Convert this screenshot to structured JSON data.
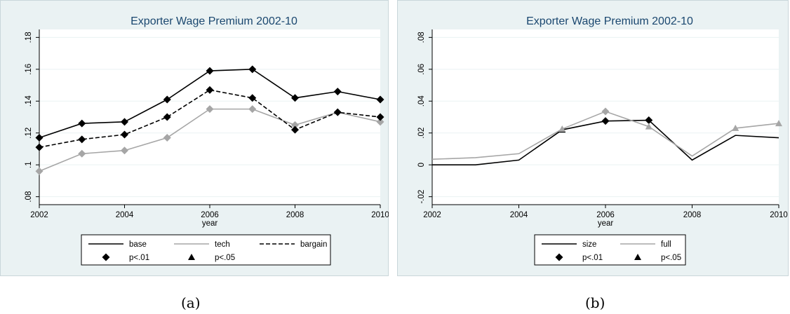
{
  "chart_data": [
    {
      "type": "line",
      "title": "Exporter Wage Premium 2002-10",
      "xlabel": "year",
      "ylabel": "",
      "x": [
        2002,
        2003,
        2004,
        2005,
        2006,
        2007,
        2008,
        2009,
        2010
      ],
      "xticks": [
        2002,
        2004,
        2006,
        2008,
        2010
      ],
      "xlim": [
        2002,
        2010
      ],
      "ylim": [
        0.075,
        0.185
      ],
      "yticks": [
        0.08,
        0.1,
        0.12,
        0.14,
        0.16,
        0.18
      ],
      "ytick_labels": [
        ".08",
        ".1",
        ".12",
        ".14",
        ".16",
        ".18"
      ],
      "grid": true,
      "legend_position": "bottom",
      "series": [
        {
          "name": "base",
          "style": "solid",
          "color": "#000000",
          "values": [
            0.117,
            0.126,
            0.127,
            0.141,
            0.159,
            0.16,
            0.142,
            0.146,
            0.141
          ],
          "markers": [
            "p<.01",
            "p<.01",
            "p<.01",
            "p<.01",
            "p<.01",
            "p<.01",
            "p<.01",
            "p<.01",
            "p<.01"
          ]
        },
        {
          "name": "tech",
          "style": "solid",
          "color": "#a6a6a6",
          "values": [
            0.096,
            0.107,
            0.109,
            0.117,
            0.135,
            0.135,
            0.125,
            0.133,
            0.127
          ],
          "markers": [
            "p<.01",
            "p<.01",
            "p<.01",
            "p<.01",
            "p<.01",
            "p<.01",
            "p<.01",
            "p<.01",
            "p<.01"
          ]
        },
        {
          "name": "bargain",
          "style": "dashed",
          "color": "#000000",
          "values": [
            0.111,
            0.116,
            0.119,
            0.13,
            0.147,
            0.142,
            0.122,
            0.133,
            0.13
          ],
          "markers": [
            "p<.01",
            "p<.01",
            "p<.01",
            "p<.01",
            "p<.01",
            "p<.01",
            "p<.01",
            "p<.01",
            "p<.01"
          ]
        }
      ],
      "legend": {
        "lines": [
          "base",
          "tech",
          "bargain"
        ],
        "markers": [
          {
            "label": "p<.01",
            "symbol": "diamond"
          },
          {
            "label": "p<.05",
            "symbol": "triangle"
          }
        ]
      },
      "caption": "(a)"
    },
    {
      "type": "line",
      "title": "Exporter Wage Premium 2002-10",
      "xlabel": "year",
      "ylabel": "",
      "x": [
        2002,
        2003,
        2004,
        2005,
        2006,
        2007,
        2008,
        2009,
        2010
      ],
      "xticks": [
        2002,
        2004,
        2006,
        2008,
        2010
      ],
      "xlim": [
        2002,
        2010
      ],
      "ylim": [
        -0.025,
        0.085
      ],
      "yticks": [
        -0.02,
        0,
        0.02,
        0.04,
        0.06,
        0.08
      ],
      "ytick_labels": [
        "-.02",
        "0",
        ".02",
        ".04",
        ".06",
        ".08"
      ],
      "grid": true,
      "legend_position": "bottom",
      "series": [
        {
          "name": "size",
          "style": "solid",
          "color": "#000000",
          "values": [
            0.0,
            0.0,
            0.003,
            0.022,
            0.0275,
            0.028,
            0.003,
            0.0185,
            0.017
          ],
          "markers": [
            null,
            null,
            null,
            "p<.05",
            "p<.01",
            "p<.01",
            null,
            null,
            null
          ]
        },
        {
          "name": "full",
          "style": "solid",
          "color": "#a6a6a6",
          "values": [
            0.0035,
            0.0045,
            0.007,
            0.0225,
            0.0335,
            0.024,
            0.0055,
            0.023,
            0.026
          ],
          "markers": [
            null,
            null,
            null,
            "p<.05",
            "p<.01",
            "p<.05",
            null,
            "p<.05",
            "p<.05"
          ]
        }
      ],
      "legend": {
        "lines": [
          "size",
          "full"
        ],
        "markers": [
          {
            "label": "p<.01",
            "symbol": "diamond"
          },
          {
            "label": "p<.05",
            "symbol": "triangle"
          }
        ]
      },
      "caption": "(b)"
    }
  ]
}
